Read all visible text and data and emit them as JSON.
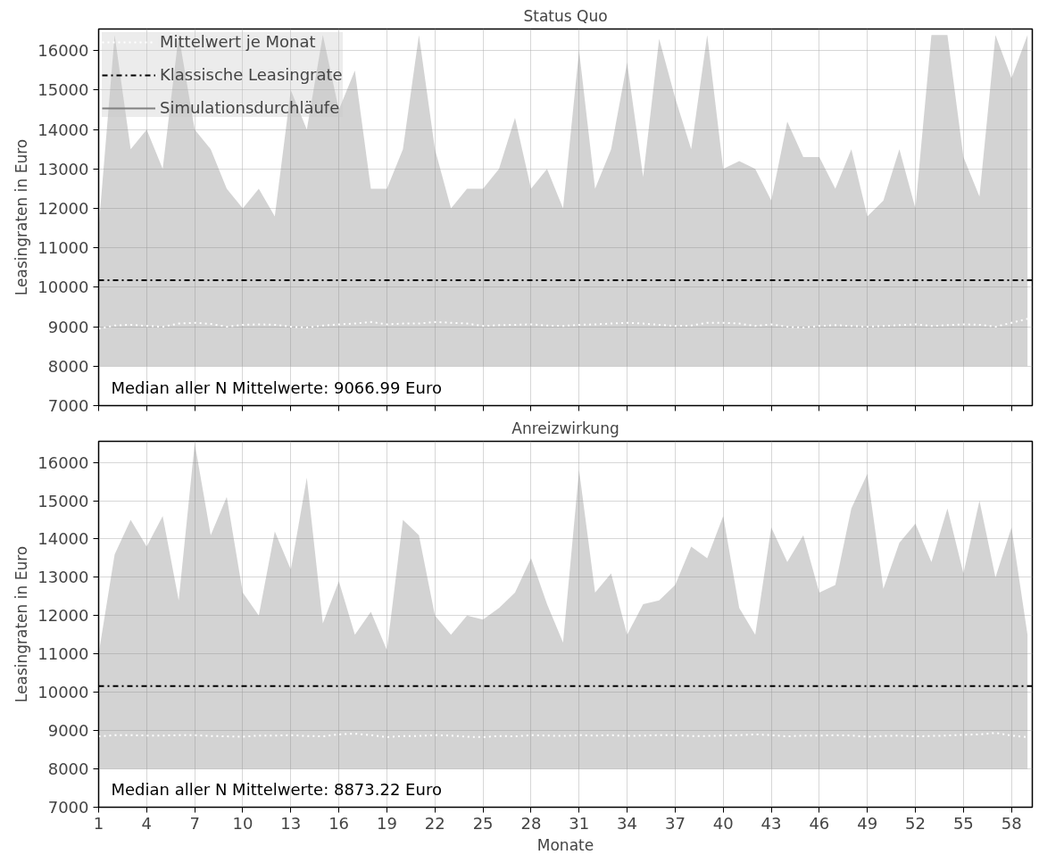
{
  "chart_data": [
    {
      "type": "line",
      "title": "Status Quo",
      "ylabel": "Leasingraten in Euro",
      "xlim": [
        1,
        59.3
      ],
      "ylim": [
        7000,
        16550
      ],
      "xticks": [
        {
          "value": 1,
          "label": null
        },
        {
          "value": 4,
          "label": null
        },
        {
          "value": 7,
          "label": null
        },
        {
          "value": 10,
          "label": null
        },
        {
          "value": 13,
          "label": null
        },
        {
          "value": 16,
          "label": null
        },
        {
          "value": 19,
          "label": null
        },
        {
          "value": 22,
          "label": null
        },
        {
          "value": 25,
          "label": null
        },
        {
          "value": 28,
          "label": null
        },
        {
          "value": 31,
          "label": null
        },
        {
          "value": 34,
          "label": null
        },
        {
          "value": 37,
          "label": null
        },
        {
          "value": 40,
          "label": null
        },
        {
          "value": 43,
          "label": null
        },
        {
          "value": 46,
          "label": null
        },
        {
          "value": 49,
          "label": null
        },
        {
          "value": 52,
          "label": null
        },
        {
          "value": 55,
          "label": null
        },
        {
          "value": 58,
          "label": null
        }
      ],
      "yticks": [
        7000,
        8000,
        9000,
        10000,
        11000,
        12000,
        13000,
        14000,
        15000,
        16000
      ],
      "tick_labels": "y",
      "grid": true,
      "legend": "top left",
      "x": [
        1,
        2,
        3,
        4,
        5,
        6,
        7,
        8,
        9,
        10,
        11,
        12,
        13,
        14,
        15,
        16,
        17,
        18,
        19,
        20,
        21,
        22,
        23,
        24,
        25,
        26,
        27,
        28,
        29,
        30,
        31,
        32,
        33,
        34,
        35,
        36,
        37,
        38,
        39,
        40,
        41,
        42,
        43,
        44,
        45,
        46,
        47,
        48,
        49,
        50,
        51,
        52,
        53,
        54,
        55,
        56,
        57,
        58,
        59
      ],
      "series": [
        {
          "name": "Simulationsdurchläufe",
          "color": "#808080",
          "values": [
            null,
            null,
            null,
            null,
            null,
            null,
            null,
            null,
            null,
            null,
            null,
            null,
            null,
            null,
            null,
            null,
            null,
            null,
            null,
            null,
            null,
            null,
            null,
            null,
            null,
            null,
            null,
            null,
            null,
            null,
            null,
            null,
            null,
            null,
            null,
            null,
            null,
            null,
            null,
            null,
            null,
            null,
            null,
            null,
            null,
            null,
            null,
            null,
            null,
            null,
            null,
            null,
            null,
            null,
            null,
            null,
            null,
            null,
            null
          ],
          "lower": [
            8000,
            8000,
            8000,
            8000,
            8000,
            8000,
            8000,
            8000,
            8000,
            8000,
            8000,
            8000,
            8000,
            8000,
            8000,
            8000,
            8000,
            8000,
            8000,
            8000,
            8000,
            8000,
            8000,
            8000,
            8000,
            8000,
            8000,
            8000,
            8000,
            8000,
            8000,
            8000,
            8000,
            8000,
            8000,
            8000,
            8000,
            8000,
            8000,
            8000,
            8000,
            8000,
            8000,
            8000,
            8000,
            8000,
            8000,
            8000,
            8000,
            8000,
            8000,
            8000,
            8000,
            8000,
            8000,
            8000,
            8000,
            8000,
            8000
          ],
          "upper": [
            11500,
            16400,
            13500,
            14000,
            13000,
            16400,
            14000,
            13500,
            12500,
            12000,
            12500,
            11800,
            15000,
            14000,
            16400,
            14500,
            15500,
            12500,
            12500,
            13500,
            16400,
            13500,
            12000,
            12500,
            12500,
            13000,
            14300,
            12500,
            13000,
            12000,
            16000,
            12500,
            13500,
            15700,
            12800,
            16300,
            14800,
            13500,
            16400,
            13000,
            13200,
            13000,
            12200,
            14200,
            13300,
            13300,
            12500,
            13500,
            11800,
            12200,
            13500,
            12000,
            16400,
            16400,
            13300,
            12300,
            16400,
            15300,
            16400
          ]
        },
        {
          "name": "Mittelwert je Monat",
          "color": "#ffffff",
          "line_style": "dotted",
          "values": [
            8950,
            9030,
            9050,
            9020,
            9000,
            9080,
            9100,
            9070,
            9000,
            9050,
            9060,
            9050,
            9000,
            8980,
            9030,
            9060,
            9080,
            9120,
            9060,
            9080,
            9080,
            9120,
            9100,
            9080,
            9020,
            9040,
            9050,
            9060,
            9030,
            9020,
            9050,
            9060,
            9080,
            9100,
            9080,
            9050,
            9020,
            9030,
            9100,
            9100,
            9080,
            9020,
            9060,
            9000,
            8980,
            9020,
            9040,
            9020,
            9000,
            9020,
            9040,
            9060,
            9020,
            9040,
            9060,
            9050,
            9000,
            9100,
            9200
          ]
        }
      ],
      "ref_lines": [
        {
          "axis": "y",
          "value": 10180,
          "label": "Klassische Leasingrate",
          "color": "#000000",
          "line_style": "dashdot"
        }
      ],
      "annotations": [
        "Median aller N Mittelwerte: 9066.99 Euro"
      ]
    },
    {
      "type": "line",
      "title": "Anreizwirkung",
      "xlabel": "Monate",
      "ylabel": "Leasingraten in Euro",
      "xlim": [
        1,
        59.3
      ],
      "ylim": [
        7000,
        16550
      ],
      "xticks": [
        1,
        4,
        7,
        10,
        13,
        16,
        19,
        22,
        25,
        28,
        31,
        34,
        37,
        40,
        43,
        46,
        49,
        52,
        55,
        58
      ],
      "yticks": [
        7000,
        8000,
        9000,
        10000,
        11000,
        12000,
        13000,
        14000,
        15000,
        16000
      ],
      "grid": true,
      "x": [
        1,
        2,
        3,
        4,
        5,
        6,
        7,
        8,
        9,
        10,
        11,
        12,
        13,
        14,
        15,
        16,
        17,
        18,
        19,
        20,
        21,
        22,
        23,
        24,
        25,
        26,
        27,
        28,
        29,
        30,
        31,
        32,
        33,
        34,
        35,
        36,
        37,
        38,
        39,
        40,
        41,
        42,
        43,
        44,
        45,
        46,
        47,
        48,
        49,
        50,
        51,
        52,
        53,
        54,
        55,
        56,
        57,
        58,
        59
      ],
      "series": [
        {
          "color": "#808080",
          "values": [
            null,
            null,
            null,
            null,
            null,
            null,
            null,
            null,
            null,
            null,
            null,
            null,
            null,
            null,
            null,
            null,
            null,
            null,
            null,
            null,
            null,
            null,
            null,
            null,
            null,
            null,
            null,
            null,
            null,
            null,
            null,
            null,
            null,
            null,
            null,
            null,
            null,
            null,
            null,
            null,
            null,
            null,
            null,
            null,
            null,
            null,
            null,
            null,
            null,
            null,
            null,
            null,
            null,
            null,
            null,
            null,
            null,
            null,
            null
          ],
          "lower": [
            8000,
            8000,
            8000,
            8000,
            8000,
            8000,
            8000,
            8000,
            8000,
            8000,
            8000,
            8000,
            8000,
            8000,
            8000,
            8000,
            8000,
            8000,
            8000,
            8000,
            8000,
            8000,
            8000,
            8000,
            8000,
            8000,
            8000,
            8000,
            8000,
            8000,
            8000,
            8000,
            8000,
            8000,
            8000,
            8000,
            8000,
            8000,
            8000,
            8000,
            8000,
            8000,
            8000,
            8000,
            8000,
            8000,
            8000,
            8000,
            8000,
            8000,
            8000,
            8000,
            8000,
            8000,
            8000,
            8000,
            8000,
            8000,
            8000
          ],
          "upper": [
            11000,
            13600,
            14500,
            13800,
            14600,
            12400,
            16500,
            14100,
            15100,
            12600,
            12000,
            14200,
            13200,
            15600,
            11800,
            12900,
            11500,
            12100,
            11100,
            14500,
            14100,
            12000,
            11500,
            12000,
            11900,
            12200,
            12600,
            13500,
            12300,
            11300,
            15800,
            12600,
            13100,
            11500,
            12300,
            12400,
            12800,
            13800,
            13500,
            14600,
            12200,
            11500,
            14300,
            13400,
            14100,
            12600,
            12800,
            14800,
            15700,
            12700,
            13900,
            14400,
            13400,
            14800,
            13100,
            15000,
            13000,
            14300,
            11500
          ]
        },
        {
          "color": "#ffffff",
          "line_style": "dotted",
          "values": [
            8850,
            8880,
            8880,
            8870,
            8870,
            8880,
            8880,
            8860,
            8850,
            8840,
            8870,
            8870,
            8880,
            8860,
            8850,
            8900,
            8920,
            8880,
            8830,
            8860,
            8860,
            8880,
            8870,
            8840,
            8830,
            8860,
            8850,
            8880,
            8870,
            8860,
            8880,
            8870,
            8880,
            8860,
            8870,
            8880,
            8880,
            8860,
            8860,
            8870,
            8880,
            8900,
            8880,
            8850,
            8870,
            8870,
            8880,
            8870,
            8840,
            8860,
            8870,
            8850,
            8860,
            8870,
            8890,
            8900,
            8940,
            8870,
            8830
          ]
        }
      ],
      "ref_lines": [
        {
          "axis": "y",
          "value": 10160,
          "color": "#000000",
          "line_style": "dashdot"
        }
      ],
      "annotations": [
        "Median aller N Mittelwerte: 8873.22 Euro"
      ]
    }
  ]
}
